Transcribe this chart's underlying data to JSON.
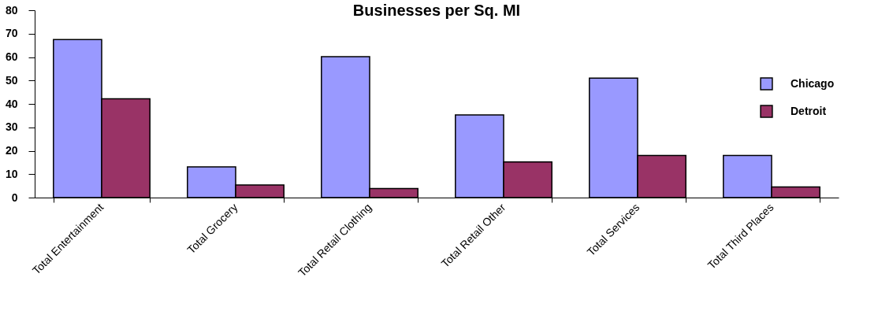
{
  "chart_data": {
    "type": "bar",
    "title": "Businesses per Sq. MI",
    "categories": [
      "Total Entertainment",
      "Total Grocery",
      "Total Retail Clothing",
      "Total Retail Other",
      "Total Services",
      "Total Third Places"
    ],
    "series": [
      {
        "name": "Chicago",
        "color": "#9999ff",
        "values": [
          67.5,
          13.1,
          60.2,
          35.3,
          51,
          18
        ]
      },
      {
        "name": "Detroit",
        "color": "#993366",
        "values": [
          42.2,
          5.4,
          3.9,
          15.2,
          18,
          4.5
        ]
      }
    ],
    "ylim": [
      0,
      80
    ],
    "yticks": [
      0,
      10,
      20,
      30,
      40,
      50,
      60,
      70,
      80
    ],
    "grid": false,
    "legend": "right"
  }
}
